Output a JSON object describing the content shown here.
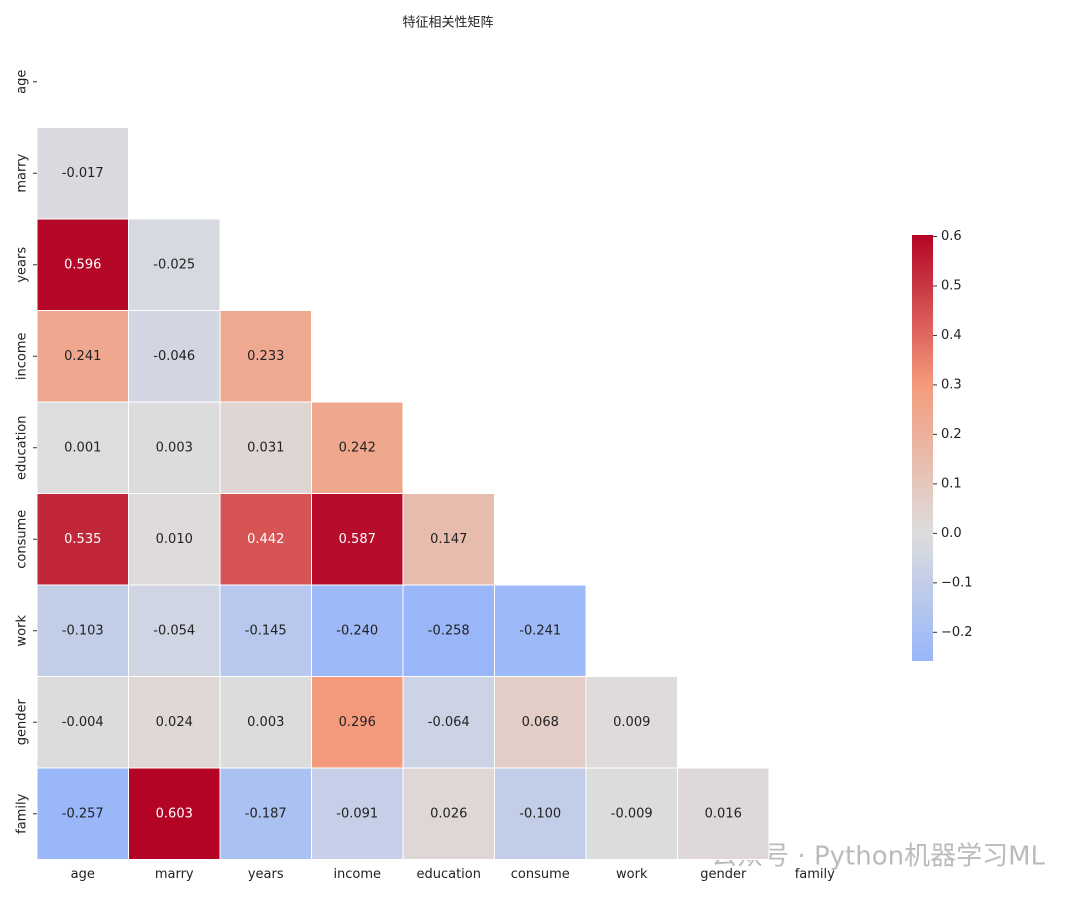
{
  "chart_data": {
    "type": "heatmap",
    "title": "特征相关性矩阵",
    "x_categories": [
      "age",
      "marry",
      "years",
      "income",
      "education",
      "consume",
      "work",
      "gender",
      "family"
    ],
    "y_categories": [
      "age",
      "marry",
      "years",
      "income",
      "education",
      "consume",
      "work",
      "gender",
      "family"
    ],
    "values": [
      [
        null,
        null,
        null,
        null,
        null,
        null,
        null,
        null,
        null
      ],
      [
        -0.017,
        null,
        null,
        null,
        null,
        null,
        null,
        null,
        null
      ],
      [
        0.596,
        -0.025,
        null,
        null,
        null,
        null,
        null,
        null,
        null
      ],
      [
        0.241,
        -0.046,
        0.233,
        null,
        null,
        null,
        null,
        null,
        null
      ],
      [
        0.001,
        0.003,
        0.031,
        0.242,
        null,
        null,
        null,
        null,
        null
      ],
      [
        0.535,
        0.01,
        0.442,
        0.587,
        0.147,
        null,
        null,
        null,
        null
      ],
      [
        -0.103,
        -0.054,
        -0.145,
        -0.24,
        -0.258,
        -0.241,
        null,
        null,
        null
      ],
      [
        -0.004,
        0.024,
        0.003,
        0.296,
        -0.064,
        0.068,
        0.009,
        null,
        null
      ],
      [
        -0.257,
        0.603,
        -0.187,
        -0.091,
        0.026,
        -0.1,
        -0.009,
        0.016,
        null
      ]
    ],
    "value_labels": [
      [
        null,
        null,
        null,
        null,
        null,
        null,
        null,
        null,
        null
      ],
      [
        "-0.017",
        null,
        null,
        null,
        null,
        null,
        null,
        null,
        null
      ],
      [
        "0.596",
        "-0.025",
        null,
        null,
        null,
        null,
        null,
        null,
        null
      ],
      [
        "0.241",
        "-0.046",
        "0.233",
        null,
        null,
        null,
        null,
        null,
        null
      ],
      [
        "0.001",
        "0.003",
        "0.031",
        "0.242",
        null,
        null,
        null,
        null,
        null
      ],
      [
        "0.535",
        "0.010",
        "0.442",
        "0.587",
        "0.147",
        null,
        null,
        null,
        null
      ],
      [
        "-0.103",
        "-0.054",
        "-0.145",
        "-0.240",
        "-0.258",
        "-0.241",
        null,
        null,
        null
      ],
      [
        "-0.004",
        "0.024",
        "0.003",
        "0.296",
        "-0.064",
        "0.068",
        "0.009",
        null,
        null
      ],
      [
        "-0.257",
        "0.603",
        "-0.187",
        "-0.091",
        "0.026",
        "-0.100",
        "-0.009",
        "0.016",
        null
      ]
    ],
    "clim": [
      -0.258,
      0.603
    ],
    "center": 0,
    "cticks": [
      0.6,
      0.5,
      0.4,
      0.3,
      0.2,
      0.1,
      {
        "value": 0,
        "label": "0.0"
      },
      {
        "value": -0.1,
        "label": "−0.1"
      },
      {
        "value": -0.2,
        "label": "−0.2"
      }
    ],
    "colors": [
      "#3b4cc0",
      "#8db0fe",
      "#dddddd",
      "#f49a7b",
      "#b40426"
    ],
    "watermark": "公众号 · Python机器学习ML"
  }
}
